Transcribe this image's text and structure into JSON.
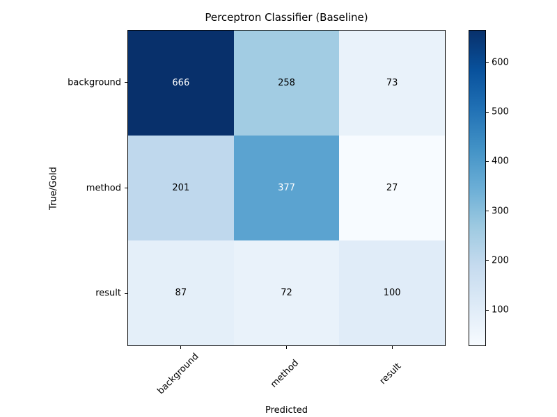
{
  "chart_data": {
    "type": "heatmap",
    "title": "Perceptron Classifier (Baseline)",
    "xlabel": "Predicted",
    "ylabel": "True/Gold",
    "x_categories": [
      "background",
      "method",
      "result"
    ],
    "y_categories": [
      "background",
      "method",
      "result"
    ],
    "matrix": [
      [
        666,
        258,
        73
      ],
      [
        201,
        377,
        27
      ],
      [
        87,
        72,
        100
      ]
    ],
    "vmin": 27,
    "vmax": 666,
    "colormap": "Blues",
    "colormap_stops": [
      "#f7fbff",
      "#deebf7",
      "#c6dbef",
      "#9ecae1",
      "#6baed6",
      "#4292c6",
      "#2171b5",
      "#08519c",
      "#08306b"
    ],
    "colorbar_ticks": [
      100,
      200,
      300,
      400,
      500,
      600
    ],
    "grid": false,
    "legend_position": "right-colorbar",
    "cell_text_color_light": "#ffffff",
    "cell_text_color_dark": "#000000",
    "axis_color": "#000000"
  }
}
